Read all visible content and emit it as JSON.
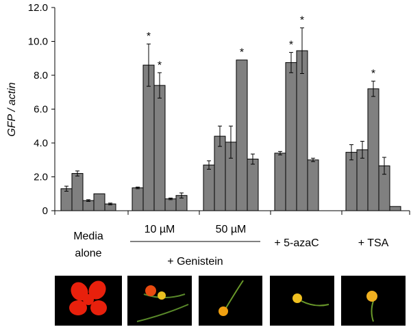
{
  "chart_data": {
    "type": "bar",
    "y_label": "GFP / actin",
    "ylim": [
      0,
      12
    ],
    "yticks": [
      0,
      {
        "value": 2,
        "label": "2.0"
      },
      {
        "value": 4,
        "label": "4.0"
      },
      {
        "value": 6,
        "label": "6.0"
      },
      {
        "value": 8,
        "label": "8.0"
      },
      {
        "value": 10,
        "label": "10.0"
      },
      {
        "value": 12,
        "label": "12.0"
      }
    ],
    "color": "#808080",
    "groups": [
      {
        "label": [
          "Media",
          "alone"
        ],
        "categories": [
          null,
          null,
          null,
          null,
          null
        ],
        "values": [
          1.3,
          2.2,
          0.6,
          1.0,
          0.4
        ],
        "errors": [
          0.15,
          0.15,
          0.05,
          0,
          0.05
        ],
        "annotations": [
          null,
          null,
          null,
          null,
          null
        ]
      },
      {
        "label": [
          "10 µM"
        ],
        "categories": [
          null,
          null,
          null,
          null,
          null
        ],
        "values": [
          1.35,
          8.6,
          7.4,
          0.7,
          0.9
        ],
        "errors": [
          0.05,
          1.25,
          0.75,
          0.05,
          0.15
        ],
        "annotations": [
          null,
          "*",
          "*",
          null,
          null
        ]
      },
      {
        "label": [
          "50 µM"
        ],
        "categories": [
          null,
          null,
          null,
          null,
          null
        ],
        "values": [
          2.7,
          4.4,
          4.05,
          8.9,
          3.05
        ],
        "errors": [
          0.25,
          0.6,
          0.95,
          0,
          0.3
        ],
        "annotations": [
          null,
          null,
          null,
          "*",
          null
        ]
      },
      {
        "label": [
          "+ 5-azaC"
        ],
        "categories": [
          null,
          null,
          null,
          null
        ],
        "values": [
          3.4,
          8.75,
          9.45,
          3.0
        ],
        "errors": [
          0.1,
          0.6,
          1.35,
          0.1
        ],
        "annotations": [
          null,
          "*",
          "*",
          null
        ]
      },
      {
        "label": [
          "+ TSA"
        ],
        "categories": [
          null,
          null,
          null,
          null,
          null
        ],
        "values": [
          3.45,
          3.6,
          7.2,
          2.65,
          0.25
        ],
        "errors": [
          0.45,
          0.5,
          0.45,
          0.5,
          0
        ],
        "annotations": [
          null,
          null,
          "*",
          null,
          null
        ]
      }
    ],
    "group_caption": "+ Genistein"
  }
}
